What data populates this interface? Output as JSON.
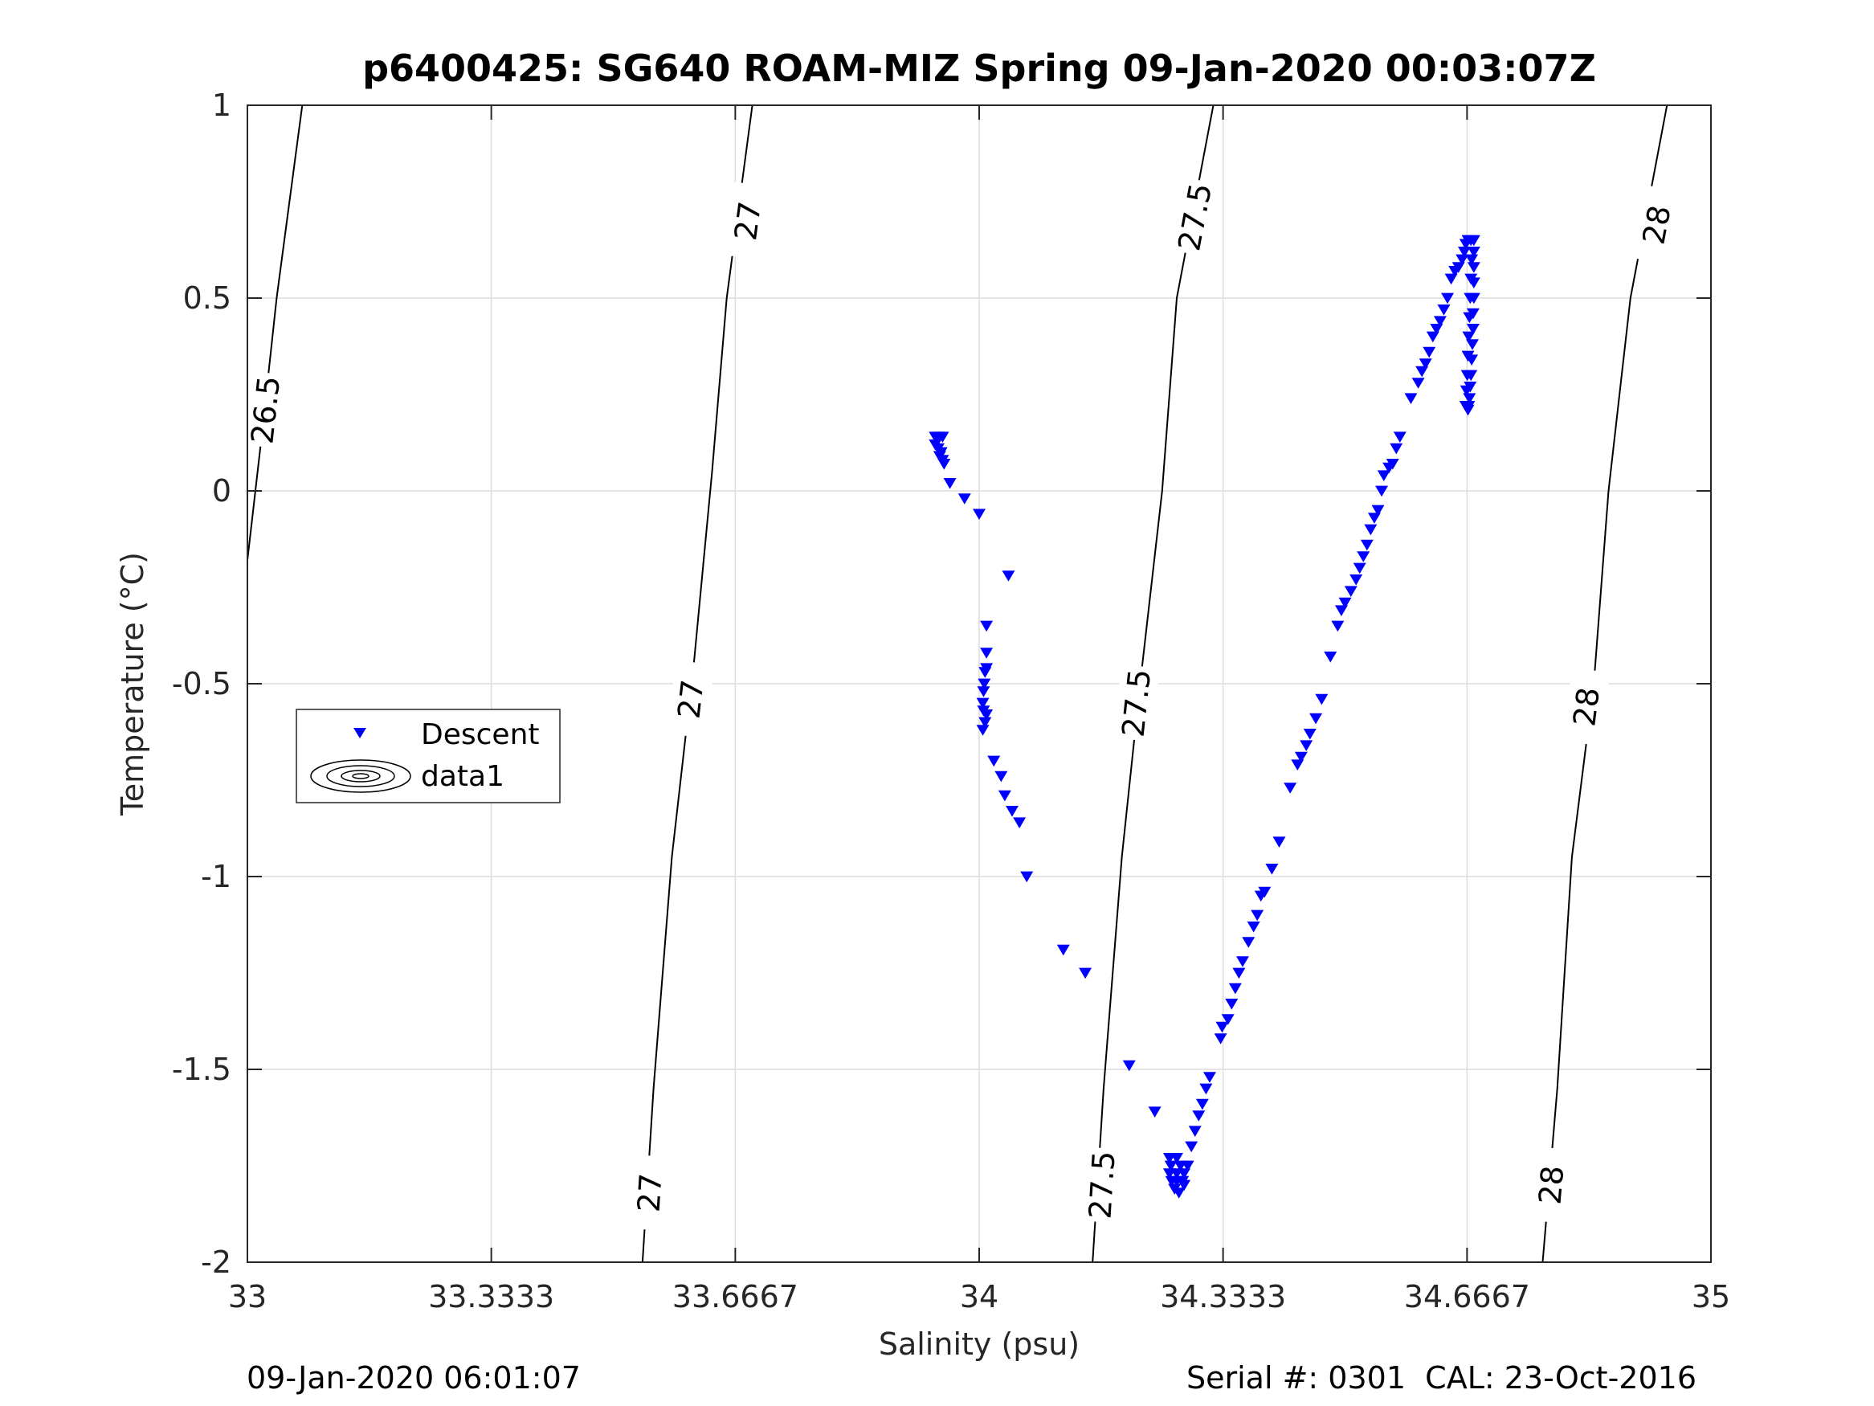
{
  "chart_data": {
    "type": "scatter",
    "title": "p6400425: SG640 ROAM-MIZ Spring 09-Jan-2020 00:03:07Z",
    "xlabel": "Salinity (psu)",
    "ylabel": "Temperature (°C)",
    "xlim": [
      33,
      35
    ],
    "ylim": [
      -2,
      1
    ],
    "x_tick_labels": [
      "33",
      "33.3333",
      "33.6667",
      "34",
      "34.3333",
      "34.6667",
      "35"
    ],
    "x_tick_values": [
      33,
      33.3333,
      33.6667,
      34,
      34.3333,
      34.6667,
      35
    ],
    "y_tick_labels": [
      "1",
      "0.5",
      "0",
      "-0.5",
      "-1",
      "-1.5",
      "-2"
    ],
    "y_tick_values": [
      1,
      0.5,
      0,
      -0.5,
      -1,
      -1.5,
      -2
    ],
    "grid": true,
    "legend_position": "left-middle",
    "legend": [
      "Descent",
      "data1"
    ],
    "footer_left": "09-Jan-2020 06:01:07",
    "footer_right": "Serial #: 0301  CAL: 23-Oct-2016",
    "colors": {
      "descent_marker": "#0000ff",
      "contour": "#000000",
      "grid": "#dcdcdc"
    },
    "density_contours": [
      {
        "label": "26.5",
        "points": [
          [
            33.0,
            -0.18
          ],
          [
            33.02,
            0.15
          ],
          [
            33.04,
            0.5
          ],
          [
            33.075,
            1.0
          ]
        ],
        "label_positions": [
          [
            33.025,
            0.21
          ]
        ]
      },
      {
        "label": "27",
        "points": [
          [
            33.54,
            -2.0
          ],
          [
            33.555,
            -1.55
          ],
          [
            33.58,
            -0.95
          ],
          [
            33.61,
            -0.45
          ],
          [
            33.635,
            0.05
          ],
          [
            33.655,
            0.5
          ],
          [
            33.69,
            1.0
          ]
        ],
        "label_positions": [
          [
            33.55,
            -1.82
          ],
          [
            33.606,
            -0.54
          ],
          [
            33.684,
            0.7
          ]
        ]
      },
      {
        "label": "27.5",
        "points": [
          [
            34.155,
            -2.0
          ],
          [
            34.17,
            -1.55
          ],
          [
            34.195,
            -0.95
          ],
          [
            34.22,
            -0.5
          ],
          [
            34.25,
            0.0
          ],
          [
            34.27,
            0.5
          ],
          [
            34.32,
            1.0
          ]
        ],
        "label_positions": [
          [
            34.168,
            -1.8
          ],
          [
            34.215,
            -0.55
          ],
          [
            34.295,
            0.71
          ]
        ]
      },
      {
        "label": "28",
        "points": [
          [
            34.77,
            -2.0
          ],
          [
            34.79,
            -1.55
          ],
          [
            34.81,
            -0.95
          ],
          [
            34.84,
            -0.5
          ],
          [
            34.86,
            0.0
          ],
          [
            34.89,
            0.5
          ],
          [
            34.94,
            1.0
          ]
        ],
        "label_positions": [
          [
            34.782,
            -1.8
          ],
          [
            34.83,
            -0.56
          ],
          [
            34.926,
            0.69
          ]
        ]
      }
    ],
    "series": [
      {
        "name": "Descent",
        "marker": "triangle-down",
        "points": [
          [
            33.94,
            0.14
          ],
          [
            33.945,
            0.14
          ],
          [
            33.95,
            0.14
          ],
          [
            33.94,
            0.12
          ],
          [
            33.944,
            0.11
          ],
          [
            33.948,
            0.1
          ],
          [
            33.946,
            0.09
          ],
          [
            33.95,
            0.08
          ],
          [
            33.952,
            0.07
          ],
          [
            33.96,
            0.02
          ],
          [
            33.98,
            -0.02
          ],
          [
            34.0,
            -0.06
          ],
          [
            34.04,
            -0.22
          ],
          [
            34.01,
            -0.35
          ],
          [
            34.01,
            -0.42
          ],
          [
            34.01,
            -0.46
          ],
          [
            34.008,
            -0.47
          ],
          [
            34.007,
            -0.5
          ],
          [
            34.006,
            -0.52
          ],
          [
            34.005,
            -0.55
          ],
          [
            34.006,
            -0.57
          ],
          [
            34.01,
            -0.58
          ],
          [
            34.008,
            -0.6
          ],
          [
            34.005,
            -0.62
          ],
          [
            34.02,
            -0.7
          ],
          [
            34.03,
            -0.74
          ],
          [
            34.035,
            -0.79
          ],
          [
            34.045,
            -0.83
          ],
          [
            34.055,
            -0.86
          ],
          [
            34.065,
            -1.0
          ],
          [
            34.115,
            -1.19
          ],
          [
            34.145,
            -1.25
          ],
          [
            34.205,
            -1.49
          ],
          [
            34.24,
            -1.61
          ],
          [
            34.26,
            -1.73
          ],
          [
            34.27,
            -1.73
          ],
          [
            34.262,
            -1.75
          ],
          [
            34.275,
            -1.75
          ],
          [
            34.26,
            -1.77
          ],
          [
            34.27,
            -1.77
          ],
          [
            34.28,
            -1.77
          ],
          [
            34.263,
            -1.79
          ],
          [
            34.27,
            -1.79
          ],
          [
            34.278,
            -1.79
          ],
          [
            34.267,
            -1.81
          ],
          [
            34.273,
            -1.82
          ],
          [
            34.28,
            -1.8
          ],
          [
            34.285,
            -1.75
          ],
          [
            34.29,
            -1.7
          ],
          [
            34.295,
            -1.66
          ],
          [
            34.3,
            -1.62
          ],
          [
            34.305,
            -1.59
          ],
          [
            34.31,
            -1.55
          ],
          [
            34.315,
            -1.52
          ],
          [
            34.33,
            -1.42
          ],
          [
            34.332,
            -1.39
          ],
          [
            34.34,
            -1.37
          ],
          [
            34.345,
            -1.33
          ],
          [
            34.35,
            -1.29
          ],
          [
            34.355,
            -1.25
          ],
          [
            34.36,
            -1.22
          ],
          [
            34.368,
            -1.17
          ],
          [
            34.375,
            -1.13
          ],
          [
            34.38,
            -1.1
          ],
          [
            34.385,
            -1.05
          ],
          [
            34.39,
            -1.04
          ],
          [
            34.4,
            -0.98
          ],
          [
            34.41,
            -0.91
          ],
          [
            34.425,
            -0.77
          ],
          [
            34.435,
            -0.71
          ],
          [
            34.44,
            -0.69
          ],
          [
            34.447,
            -0.66
          ],
          [
            34.452,
            -0.63
          ],
          [
            34.46,
            -0.59
          ],
          [
            34.468,
            -0.54
          ],
          [
            34.48,
            -0.43
          ],
          [
            34.49,
            -0.35
          ],
          [
            34.495,
            -0.31
          ],
          [
            34.5,
            -0.29
          ],
          [
            34.508,
            -0.26
          ],
          [
            34.515,
            -0.23
          ],
          [
            34.52,
            -0.2
          ],
          [
            34.525,
            -0.17
          ],
          [
            34.53,
            -0.14
          ],
          [
            34.535,
            -0.1
          ],
          [
            34.54,
            -0.07
          ],
          [
            34.545,
            -0.05
          ],
          [
            34.55,
            0.0
          ],
          [
            34.553,
            0.04
          ],
          [
            34.56,
            0.06
          ],
          [
            34.565,
            0.07
          ],
          [
            34.57,
            0.11
          ],
          [
            34.575,
            0.14
          ],
          [
            34.59,
            0.24
          ],
          [
            34.6,
            0.28
          ],
          [
            34.605,
            0.31
          ],
          [
            34.61,
            0.33
          ],
          [
            34.615,
            0.36
          ],
          [
            34.62,
            0.4
          ],
          [
            34.625,
            0.42
          ],
          [
            34.63,
            0.44
          ],
          [
            34.635,
            0.47
          ],
          [
            34.64,
            0.5
          ],
          [
            34.645,
            0.55
          ],
          [
            34.65,
            0.57
          ],
          [
            34.655,
            0.58
          ],
          [
            34.66,
            0.6
          ],
          [
            34.663,
            0.62
          ],
          [
            34.665,
            0.64
          ],
          [
            34.668,
            0.65
          ],
          [
            34.672,
            0.65
          ],
          [
            34.676,
            0.65
          ],
          [
            34.676,
            0.62
          ],
          [
            34.676,
            0.58
          ],
          [
            34.676,
            0.54
          ],
          [
            34.676,
            0.5
          ],
          [
            34.675,
            0.46
          ],
          [
            34.675,
            0.42
          ],
          [
            34.674,
            0.38
          ],
          [
            34.673,
            0.34
          ],
          [
            34.672,
            0.3
          ],
          [
            34.671,
            0.27
          ],
          [
            34.67,
            0.24
          ],
          [
            34.669,
            0.22
          ],
          [
            34.668,
            0.21
          ],
          [
            34.665,
            0.22
          ],
          [
            34.666,
            0.26
          ],
          [
            34.667,
            0.3
          ],
          [
            34.668,
            0.35
          ],
          [
            34.669,
            0.4
          ],
          [
            34.67,
            0.45
          ],
          [
            34.671,
            0.5
          ],
          [
            34.672,
            0.55
          ],
          [
            34.673,
            0.6
          ]
        ]
      },
      {
        "name": "data1",
        "marker": "contour"
      }
    ]
  }
}
